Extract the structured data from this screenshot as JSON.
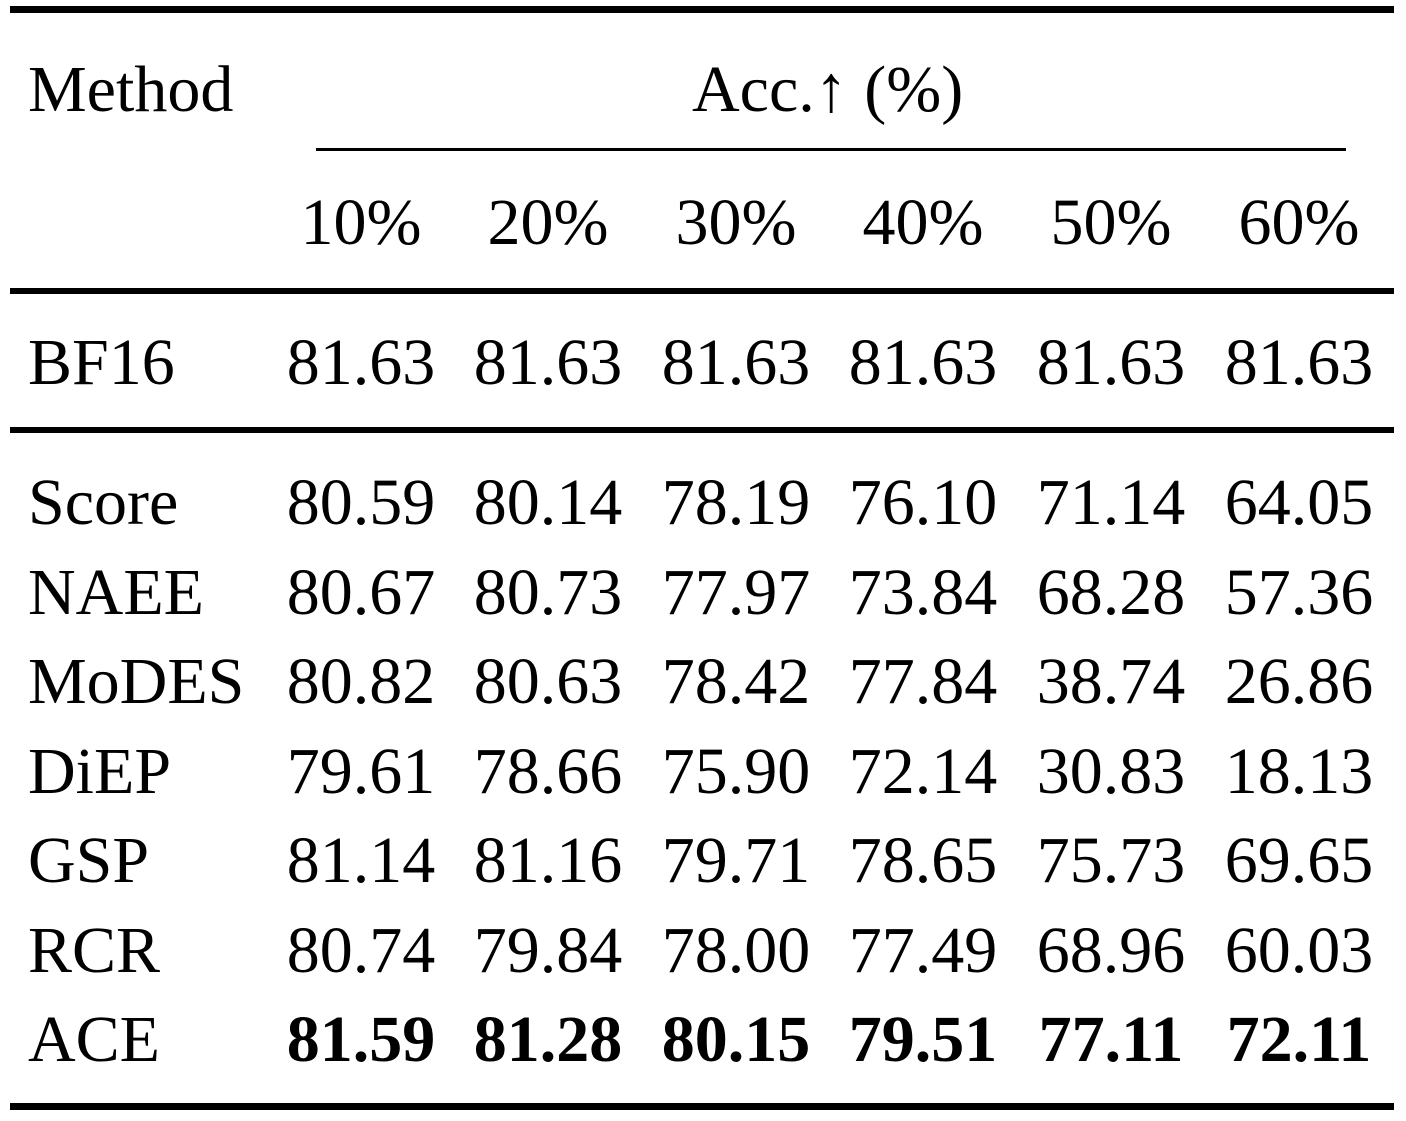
{
  "table": {
    "header": {
      "method_label": "Method",
      "metric_label": "Acc.↑ (%)",
      "ratios": [
        "10%",
        "20%",
        "30%",
        "40%",
        "50%",
        "60%"
      ]
    },
    "baseline": {
      "method": "BF16",
      "values": [
        "81.63",
        "81.63",
        "81.63",
        "81.63",
        "81.63",
        "81.63"
      ]
    },
    "rows": [
      {
        "method": "Score",
        "values": [
          "80.59",
          "80.14",
          "78.19",
          "76.10",
          "71.14",
          "64.05"
        ]
      },
      {
        "method": "NAEE",
        "values": [
          "80.67",
          "80.73",
          "77.97",
          "73.84",
          "68.28",
          "57.36"
        ]
      },
      {
        "method": "MoDES",
        "values": [
          "80.82",
          "80.63",
          "78.42",
          "77.84",
          "38.74",
          "26.86"
        ]
      },
      {
        "method": "DiEP",
        "values": [
          "79.61",
          "78.66",
          "75.90",
          "72.14",
          "30.83",
          "18.13"
        ]
      },
      {
        "method": "GSP",
        "values": [
          "81.14",
          "81.16",
          "79.71",
          "78.65",
          "75.73",
          "69.65"
        ]
      },
      {
        "method": "RCR",
        "values": [
          "80.74",
          "79.84",
          "78.00",
          "77.49",
          "68.96",
          "60.03"
        ]
      },
      {
        "method": "ACE",
        "values": [
          "81.59",
          "81.28",
          "80.15",
          "79.51",
          "77.11",
          "72.11"
        ],
        "bold": true
      }
    ]
  }
}
